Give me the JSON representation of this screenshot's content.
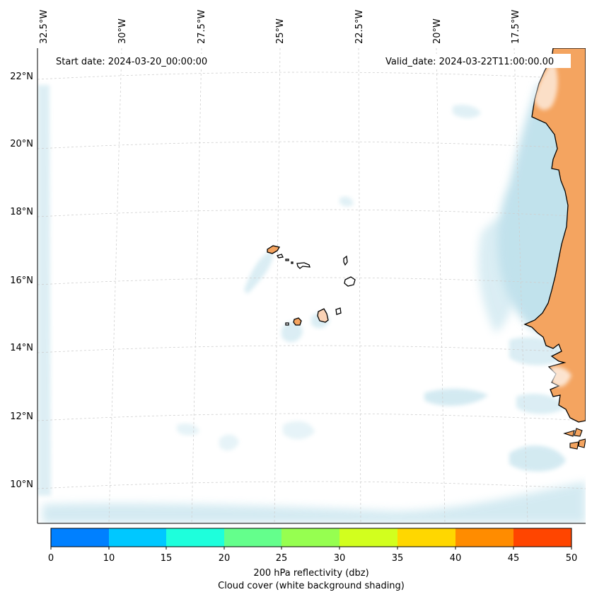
{
  "map": {
    "start_date": "Start date: 2024-03-20_00:00:00",
    "valid_date": "Valid_date: 2024-03-22T11:00:00.00",
    "lon_labels": [
      "32.5°W",
      "30°W",
      "27.5°W",
      "25°W",
      "22.5°W",
      "20°W",
      "17.5°W"
    ],
    "lat_labels": [
      "22°N",
      "20°N",
      "18°N",
      "16°N",
      "14°N",
      "12°N",
      "10°N"
    ],
    "colors": {
      "land": "#f4a460",
      "cloud": "#add8e6",
      "grid": "#c8c8c8",
      "coast": "#000000"
    }
  },
  "colorbar": {
    "ticks": [
      "0",
      "10",
      "15",
      "20",
      "25",
      "30",
      "35",
      "40",
      "45",
      "50"
    ],
    "colors": [
      "#0080ff",
      "#00c8ff",
      "#1effdc",
      "#64ff8c",
      "#96ff50",
      "#d2ff1e",
      "#ffd700",
      "#ff8c00",
      "#ff4500"
    ],
    "label_line1": "200 hPa reflectivity (dbz)",
    "label_line2": "Cloud cover (white background shading)"
  }
}
